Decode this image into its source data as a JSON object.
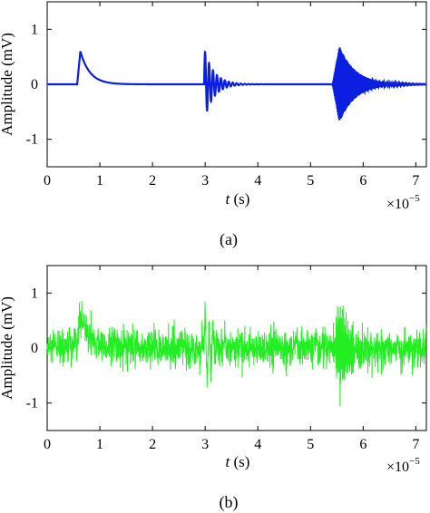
{
  "figure": {
    "panels": [
      {
        "caption": "(a)",
        "ylabel": "Amplitude (mV)",
        "xlabel_var": "t",
        "xlabel_unit": " (s)",
        "x_exponent_base": "×10",
        "x_exponent": "−5"
      },
      {
        "caption": "(b)",
        "ylabel": "Amplitude (mV)",
        "xlabel_var": "t",
        "xlabel_unit": " (s)",
        "x_exponent_base": "×10",
        "x_exponent": "−5"
      }
    ]
  },
  "chart_data": [
    {
      "type": "line",
      "title": "",
      "xlabel": "t (s)",
      "ylabel": "Amplitude (mV)",
      "x_scale_note": "×10^-5",
      "xlim": [
        0,
        7.2
      ],
      "ylim": [
        -1.5,
        1.5
      ],
      "xticks": [
        0,
        1,
        2,
        3,
        4,
        5,
        6,
        7
      ],
      "yticks": [
        -1,
        0,
        1
      ],
      "grid": false,
      "series": [
        {
          "color": "#0a1fe0",
          "description_of_segments": "",
          "events": [
            {
              "kind": "exponential-pulse",
              "onset": 0.57,
              "peak_time": 0.63,
              "peak": 0.6,
              "decay": 0.18
            },
            {
              "kind": "damped-oscillation",
              "onset": 2.98,
              "initial_amplitude": 0.65,
              "period": 0.075,
              "decay": 0.18
            },
            {
              "kind": "damped-oscillation",
              "onset": 5.42,
              "peak_time": 5.55,
              "initial_amplitude": 0.68,
              "period": 0.011,
              "decay": 0.3
            }
          ]
        }
      ]
    },
    {
      "type": "line",
      "title": "",
      "xlabel": "t (s)",
      "ylabel": "Amplitude (mV)",
      "x_scale_note": "×10^-5",
      "xlim": [
        0,
        7.2
      ],
      "ylim": [
        -1.5,
        1.5
      ],
      "xticks": [
        0,
        1,
        2,
        3,
        4,
        5,
        6,
        7
      ],
      "yticks": [
        -1,
        0,
        1
      ],
      "grid": false,
      "series": [
        {
          "color": "#22ee22",
          "noise_std": 0.17,
          "events": [
            {
              "kind": "exponential-pulse",
              "onset": 0.57,
              "peak_time": 0.63,
              "peak": 0.6,
              "decay": 0.18
            },
            {
              "kind": "damped-oscillation",
              "onset": 2.98,
              "initial_amplitude": 0.65,
              "period": 0.075,
              "decay": 0.18
            },
            {
              "kind": "damped-oscillation",
              "onset": 5.42,
              "peak_time": 5.55,
              "initial_amplitude": 0.68,
              "period": 0.011,
              "decay": 0.3
            }
          ]
        }
      ]
    }
  ]
}
